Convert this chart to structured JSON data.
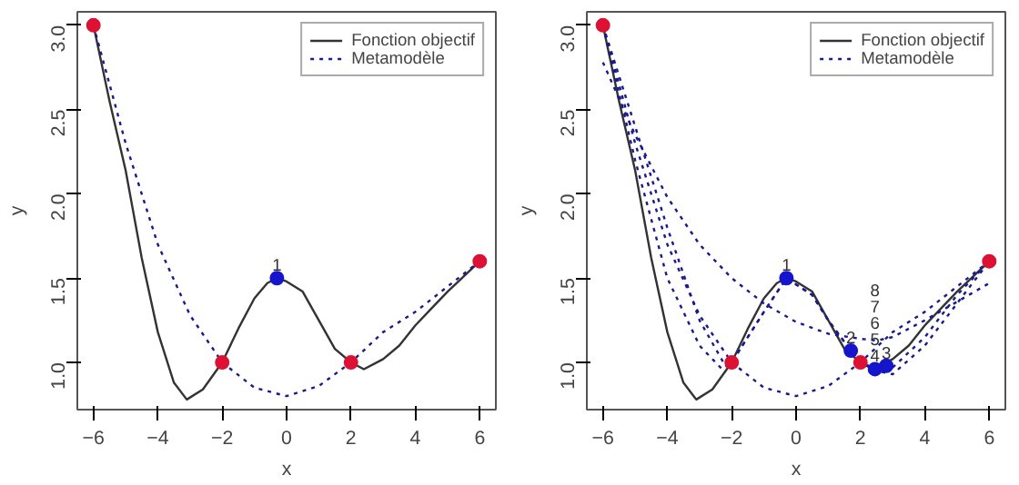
{
  "chart_data": [
    {
      "type": "line",
      "xlabel": "x",
      "ylabel": "y",
      "xlim": [
        -6.5,
        6.5
      ],
      "ylim": [
        0.72,
        3.08
      ],
      "xticks": [
        -6,
        -4,
        -2,
        0,
        2,
        4,
        6
      ],
      "yticks": [
        {
          "value": 1,
          "label": "1.0"
        },
        {
          "value": 1.5,
          "label": "1.5"
        },
        {
          "value": 2,
          "label": "2.0"
        },
        {
          "value": 2.5,
          "label": "2.5"
        },
        {
          "value": 3,
          "label": "3.0"
        }
      ],
      "legend": "top right",
      "grid": false,
      "annotations": [
        {
          "text": "1",
          "x": -0.3,
          "y": 1.5
        }
      ],
      "series": [
        {
          "name": "Fonction objectif",
          "type": "line",
          "line_style": "solid",
          "color": "#333333",
          "x": [
            -6,
            -5.5,
            -5,
            -4.5,
            -4,
            -3.5,
            -3.1,
            -2.6,
            -2,
            -1.5,
            -1,
            -0.6,
            -0.3,
            0,
            0.5,
            1,
            1.5,
            2,
            2.4,
            3,
            3.5,
            4,
            4.5,
            5,
            5.5,
            6
          ],
          "values": [
            3.0,
            2.55,
            2.14,
            1.62,
            1.18,
            0.88,
            0.78,
            0.84,
            1.0,
            1.2,
            1.38,
            1.47,
            1.5,
            1.48,
            1.42,
            1.25,
            1.08,
            1.0,
            0.96,
            1.02,
            1.1,
            1.22,
            1.32,
            1.42,
            1.51,
            1.6
          ]
        },
        {
          "name": "Metamodèle",
          "type": "line",
          "line_style": "dotted",
          "color": "#1a1a8c",
          "x": [
            -6,
            -5,
            -4,
            -3,
            -2,
            -1,
            0,
            1,
            2,
            3,
            4,
            5,
            6
          ],
          "values": [
            3.0,
            2.3,
            1.7,
            1.28,
            1.0,
            0.85,
            0.8,
            0.86,
            1.0,
            1.18,
            1.3,
            1.45,
            1.6
          ]
        },
        {
          "type": "scatter",
          "marker": "circle",
          "color": "#dd1133",
          "x": [
            -6,
            -2,
            2,
            6
          ],
          "values": [
            3.0,
            1.0,
            1.0,
            1.6
          ]
        },
        {
          "type": "scatter",
          "marker": "circle",
          "color": "#1515cc",
          "x": [
            -0.3
          ],
          "values": [
            1.5
          ]
        }
      ]
    },
    {
      "type": "line",
      "xlabel": "x",
      "ylabel": "y",
      "xlim": [
        -6.5,
        6.5
      ],
      "ylim": [
        0.72,
        3.08
      ],
      "xticks": [
        -6,
        -4,
        -2,
        0,
        2,
        4,
        6
      ],
      "yticks": [
        {
          "value": 1,
          "label": "1.0"
        },
        {
          "value": 1.5,
          "label": "1.5"
        },
        {
          "value": 2,
          "label": "2.0"
        },
        {
          "value": 2.5,
          "label": "2.5"
        },
        {
          "value": 3,
          "label": "3.0"
        }
      ],
      "legend": "top right",
      "grid": false,
      "annotations": [
        {
          "text": "1",
          "x": -0.3,
          "y": 1.5
        },
        {
          "text": "2",
          "x": 1.7,
          "y": 1.07
        },
        {
          "text": "3",
          "x": 2.8,
          "y": 0.98
        },
        {
          "text": "4",
          "x": 2.45,
          "y": 0.96
        },
        "5",
        "6",
        "7",
        "8"
      ],
      "series": [
        {
          "name": "Fonction objectif",
          "type": "line",
          "line_style": "solid",
          "color": "#333333",
          "x": [
            -6,
            -5.5,
            -5,
            -4.5,
            -4,
            -3.5,
            -3.1,
            -2.6,
            -2,
            -1.5,
            -1,
            -0.6,
            -0.3,
            0,
            0.5,
            1,
            1.5,
            2,
            2.4,
            3,
            3.5,
            4,
            4.5,
            5,
            5.5,
            6
          ],
          "values": [
            3.0,
            2.55,
            2.14,
            1.62,
            1.18,
            0.88,
            0.78,
            0.84,
            1.0,
            1.2,
            1.38,
            1.47,
            1.5,
            1.48,
            1.42,
            1.25,
            1.08,
            1.0,
            0.96,
            1.02,
            1.1,
            1.22,
            1.32,
            1.42,
            1.51,
            1.6
          ]
        },
        {
          "name": "Metamodèle",
          "type": "line",
          "line_style": "dotted",
          "color": "#1a1a8c",
          "x": [
            -6,
            -5,
            -4,
            -3,
            -2,
            -1,
            0,
            1,
            2,
            3,
            4,
            5,
            6
          ],
          "values": [
            3.0,
            2.3,
            1.7,
            1.28,
            1.0,
            0.85,
            0.8,
            0.86,
            1.0,
            1.18,
            1.3,
            1.45,
            1.6
          ]
        },
        {
          "type": "line",
          "line_style": "dotted",
          "color": "#1a1a8c",
          "x": [
            -6,
            -5,
            -4,
            -3,
            -2,
            -1,
            0,
            1,
            2,
            2.5,
            3,
            4,
            5,
            6
          ],
          "values": [
            2.78,
            2.35,
            1.98,
            1.7,
            1.5,
            1.35,
            1.24,
            1.17,
            1.14,
            1.13,
            1.15,
            1.25,
            1.36,
            1.47
          ]
        },
        {
          "type": "line",
          "line_style": "dotted",
          "color": "#1a1a8c",
          "x": [
            -6,
            -5,
            -4,
            -3,
            -2.3,
            -2,
            -1,
            -0.3,
            0.5,
            1,
            1.7,
            2,
            2.5,
            3,
            4,
            5,
            6
          ],
          "values": [
            3.0,
            2.2,
            1.5,
            1.1,
            0.96,
            1.0,
            1.3,
            1.5,
            1.4,
            1.25,
            1.07,
            1.0,
            0.95,
            0.93,
            1.1,
            1.35,
            1.6
          ]
        },
        {
          "type": "line",
          "line_style": "dotted",
          "color": "#1a1a8c",
          "x": [
            -6,
            -5,
            -4,
            -3,
            -2.2,
            -2,
            -1,
            -0.3,
            0.5,
            1,
            1.7,
            2,
            2.5,
            3,
            4,
            5,
            6
          ],
          "values": [
            3.0,
            2.4,
            1.8,
            1.25,
            0.98,
            1.0,
            1.3,
            1.5,
            1.4,
            1.25,
            1.07,
            1.0,
            0.96,
            0.97,
            1.15,
            1.4,
            1.6
          ]
        },
        {
          "type": "scatter",
          "marker": "circle",
          "color": "#dd1133",
          "x": [
            -6,
            -2,
            2,
            6
          ],
          "values": [
            3.0,
            1.0,
            1.0,
            1.6
          ]
        },
        {
          "type": "scatter",
          "marker": "circle",
          "color": "#1515cc",
          "x": [
            -0.3,
            1.7,
            2.8,
            2.45
          ],
          "values": [
            1.5,
            1.07,
            0.98,
            0.96
          ]
        }
      ]
    }
  ]
}
